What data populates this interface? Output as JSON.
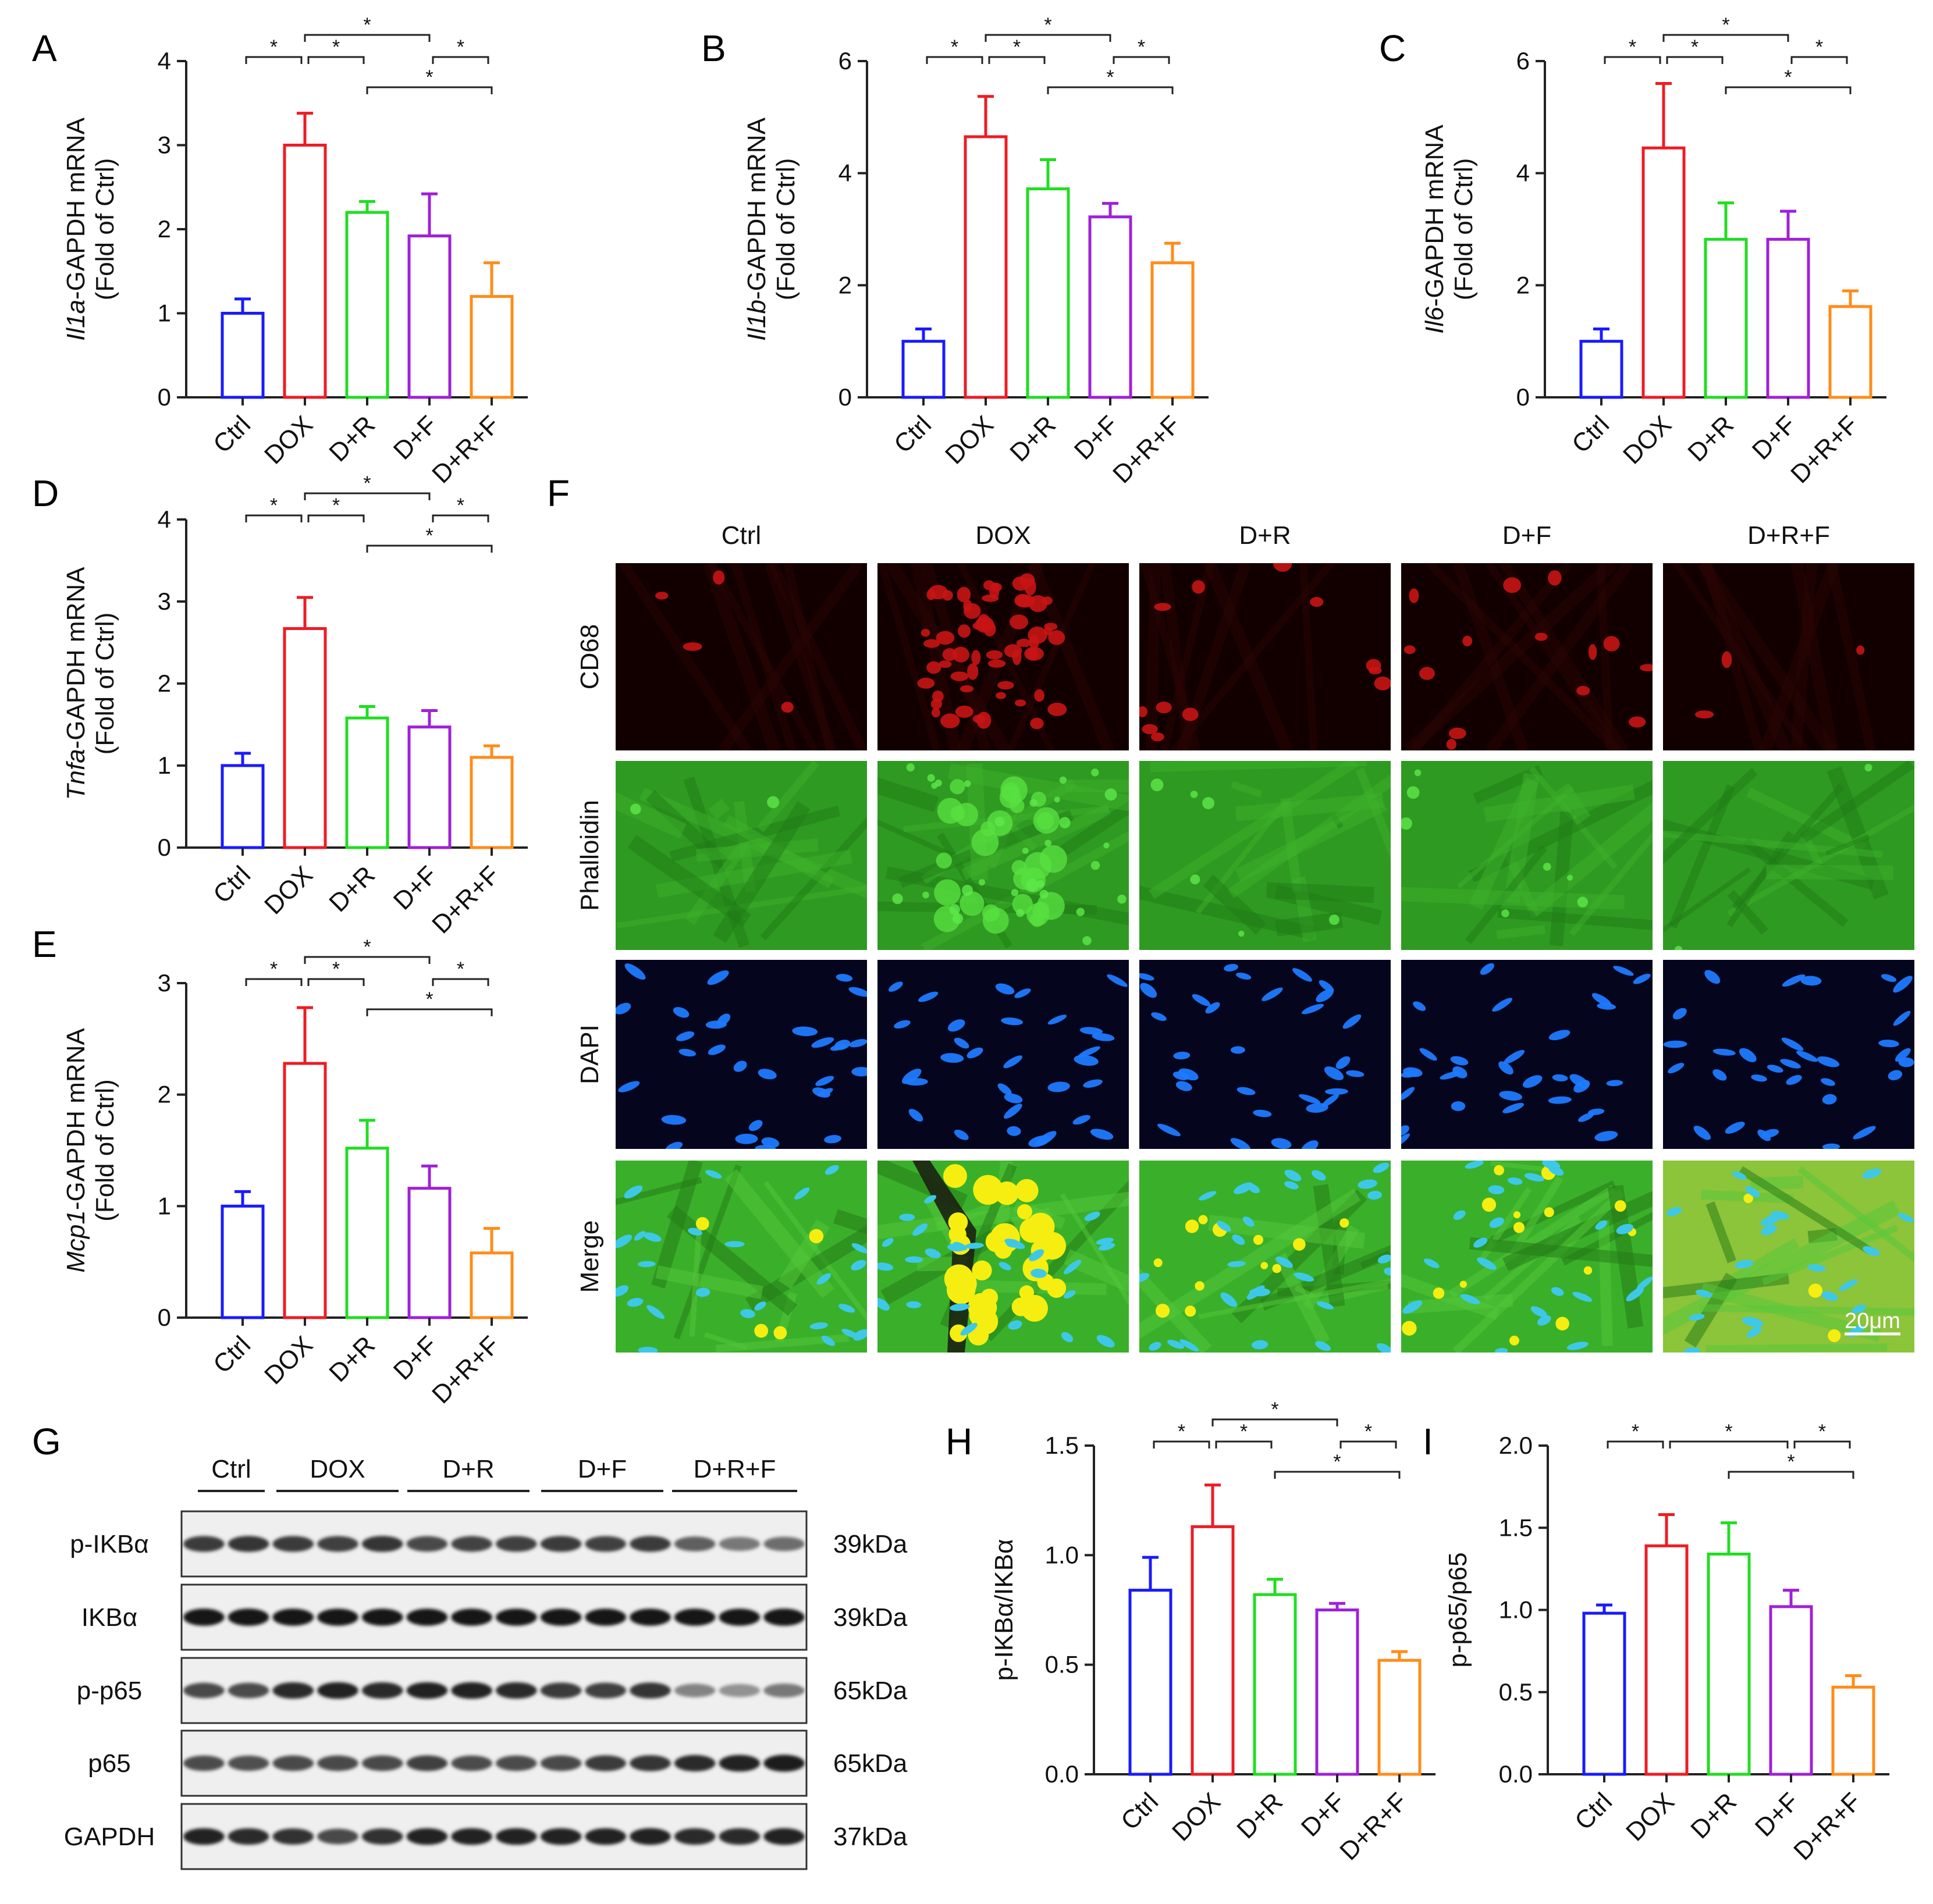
{
  "colors": {
    "Ctrl": "#1a1aff",
    "DOX": "#ee1c24",
    "D+R": "#22dd22",
    "D+F": "#a020d8",
    "D+R+F": "#ff8c1a",
    "axis": "#222222"
  },
  "chart_data": [
    {
      "panel": "A",
      "type": "bar",
      "ylabel_gene": "Il1a",
      "ylabel_rest": "-GAPDH mRNA",
      "ylabel_line2": "(Fold of Ctrl)",
      "categories": [
        "Ctrl",
        "DOX",
        "D+R",
        "D+F",
        "D+R+F"
      ],
      "values": [
        1.0,
        3.0,
        2.2,
        1.92,
        1.2
      ],
      "errors": [
        0.17,
        0.38,
        0.13,
        0.5,
        0.4
      ],
      "ylim": [
        0,
        4
      ],
      "yticks": [
        "0",
        "1",
        "2",
        "3",
        "4"
      ],
      "ytick_values": [
        0,
        1,
        2,
        3,
        4
      ],
      "significance": [
        {
          "from": 0,
          "to": 1,
          "level": 0,
          "label": "*"
        },
        {
          "from": 1,
          "to": 2,
          "level": 0,
          "label": "*"
        },
        {
          "from": 3,
          "to": 4,
          "level": 0,
          "label": "*"
        },
        {
          "from": 1,
          "to": 3,
          "level": 1,
          "label": "*"
        },
        {
          "from": 2,
          "to": 4,
          "level": -1,
          "label": "*"
        }
      ]
    },
    {
      "panel": "B",
      "type": "bar",
      "ylabel_gene": "Il1b",
      "ylabel_rest": "-GAPDH mRNA",
      "ylabel_line2": "(Fold of Ctrl)",
      "categories": [
        "Ctrl",
        "DOX",
        "D+R",
        "D+F",
        "D+R+F"
      ],
      "values": [
        1.0,
        4.65,
        3.72,
        3.22,
        2.4
      ],
      "errors": [
        0.22,
        0.72,
        0.52,
        0.24,
        0.35
      ],
      "ylim": [
        0,
        6
      ],
      "yticks": [
        "0",
        "2",
        "4",
        "6"
      ],
      "ytick_values": [
        0,
        2,
        4,
        6
      ],
      "significance": [
        {
          "from": 0,
          "to": 1,
          "level": 0,
          "label": "*"
        },
        {
          "from": 1,
          "to": 2,
          "level": 0,
          "label": "*"
        },
        {
          "from": 3,
          "to": 4,
          "level": 0,
          "label": "*"
        },
        {
          "from": 1,
          "to": 3,
          "level": 1,
          "label": "*"
        },
        {
          "from": 2,
          "to": 4,
          "level": -1,
          "label": "*"
        }
      ]
    },
    {
      "panel": "C",
      "type": "bar",
      "ylabel_gene": "Il6",
      "ylabel_rest": "-GAPDH mRNA",
      "ylabel_line2": "(Fold of Ctrl)",
      "categories": [
        "Ctrl",
        "DOX",
        "D+R",
        "D+F",
        "D+R+F"
      ],
      "values": [
        1.0,
        4.45,
        2.82,
        2.82,
        1.62
      ],
      "errors": [
        0.22,
        1.15,
        0.65,
        0.5,
        0.28
      ],
      "ylim": [
        0,
        6
      ],
      "yticks": [
        "0",
        "2",
        "4",
        "6"
      ],
      "ytick_values": [
        0,
        2,
        4,
        6
      ],
      "significance": [
        {
          "from": 0,
          "to": 1,
          "level": 0,
          "label": "*"
        },
        {
          "from": 1,
          "to": 2,
          "level": 0,
          "label": "*"
        },
        {
          "from": 3,
          "to": 4,
          "level": 0,
          "label": "*"
        },
        {
          "from": 1,
          "to": 3,
          "level": 1,
          "label": "*"
        },
        {
          "from": 2,
          "to": 4,
          "level": -1,
          "label": "*"
        }
      ]
    },
    {
      "panel": "D",
      "type": "bar",
      "ylabel_gene": "Tnfa",
      "ylabel_rest": "-GAPDH mRNA",
      "ylabel_line2": "(Fold of Ctrl)",
      "categories": [
        "Ctrl",
        "DOX",
        "D+R",
        "D+F",
        "D+R+F"
      ],
      "values": [
        1.0,
        2.67,
        1.58,
        1.47,
        1.1
      ],
      "errors": [
        0.15,
        0.38,
        0.14,
        0.2,
        0.14
      ],
      "ylim": [
        0,
        4
      ],
      "yticks": [
        "0",
        "1",
        "2",
        "3",
        "4"
      ],
      "ytick_values": [
        0,
        1,
        2,
        3,
        4
      ],
      "significance": [
        {
          "from": 0,
          "to": 1,
          "level": 0,
          "label": "*"
        },
        {
          "from": 1,
          "to": 2,
          "level": 0,
          "label": "*"
        },
        {
          "from": 3,
          "to": 4,
          "level": 0,
          "label": "*"
        },
        {
          "from": 1,
          "to": 3,
          "level": 1,
          "label": "*"
        },
        {
          "from": 2,
          "to": 4,
          "level": -1,
          "label": "*"
        }
      ]
    },
    {
      "panel": "E",
      "type": "bar",
      "ylabel_gene": "Mcp1",
      "ylabel_rest": "-GAPDH mRNA",
      "ylabel_line2": "(Fold of Ctrl)",
      "categories": [
        "Ctrl",
        "DOX",
        "D+R",
        "D+F",
        "D+R+F"
      ],
      "values": [
        1.0,
        2.28,
        1.52,
        1.16,
        0.58
      ],
      "errors": [
        0.13,
        0.5,
        0.25,
        0.2,
        0.22
      ],
      "ylim": [
        0,
        3
      ],
      "yticks": [
        "0",
        "1",
        "2",
        "3"
      ],
      "ytick_values": [
        0,
        1,
        2,
        3
      ],
      "significance": [
        {
          "from": 0,
          "to": 1,
          "level": 0,
          "label": "*"
        },
        {
          "from": 1,
          "to": 2,
          "level": 0,
          "label": "*"
        },
        {
          "from": 3,
          "to": 4,
          "level": 0,
          "label": "*"
        },
        {
          "from": 1,
          "to": 3,
          "level": 1,
          "label": "*"
        },
        {
          "from": 2,
          "to": 4,
          "level": -1,
          "label": "*"
        }
      ]
    },
    {
      "panel": "H",
      "type": "bar",
      "ylabel_gene": "",
      "ylabel_rest": "p-IKBα/IKBα",
      "ylabel_line2": "",
      "categories": [
        "Ctrl",
        "DOX",
        "D+R",
        "D+F",
        "D+R+F"
      ],
      "values": [
        0.84,
        1.13,
        0.82,
        0.75,
        0.52
      ],
      "errors": [
        0.15,
        0.19,
        0.07,
        0.03,
        0.04
      ],
      "ylim": [
        0,
        1.5
      ],
      "yticks": [
        "0.0",
        "0.5",
        "1.0",
        "1.5"
      ],
      "ytick_values": [
        0,
        0.5,
        1.0,
        1.5
      ],
      "significance": [
        {
          "from": 0,
          "to": 1,
          "level": 0,
          "label": "*"
        },
        {
          "from": 1,
          "to": 2,
          "level": 0,
          "label": "*"
        },
        {
          "from": 3,
          "to": 4,
          "level": 0,
          "label": "*"
        },
        {
          "from": 1,
          "to": 3,
          "level": 1,
          "label": "*"
        },
        {
          "from": 2,
          "to": 4,
          "level": -1,
          "label": "*"
        }
      ]
    },
    {
      "panel": "I",
      "type": "bar",
      "ylabel_gene": "",
      "ylabel_rest": "p-p65/p65",
      "ylabel_line2": "",
      "categories": [
        "Ctrl",
        "DOX",
        "D+R",
        "D+F",
        "D+R+F"
      ],
      "values": [
        0.98,
        1.39,
        1.34,
        1.02,
        0.53
      ],
      "errors": [
        0.05,
        0.19,
        0.19,
        0.1,
        0.07
      ],
      "ylim": [
        0,
        2.0
      ],
      "yticks": [
        "0.0",
        "0.5",
        "1.0",
        "1.5",
        "2.0"
      ],
      "ytick_values": [
        0,
        0.5,
        1.0,
        1.5,
        2.0
      ],
      "significance": [
        {
          "from": 0,
          "to": 1,
          "level": 0,
          "label": "*"
        },
        {
          "from": 3,
          "to": 4,
          "level": 0,
          "label": "*"
        },
        {
          "from": 1,
          "to": 3,
          "level": 0,
          "label": "*"
        },
        {
          "from": 2,
          "to": 4,
          "level": -1,
          "label": "*"
        }
      ]
    }
  ],
  "immuno": {
    "label": "F",
    "columns": [
      "Ctrl",
      "DOX",
      "D+R",
      "D+F",
      "D+R+F"
    ],
    "rows": [
      "CD68",
      "Phalloidin",
      "DAPI",
      "Merge"
    ],
    "scale_bar": "20μm"
  },
  "western": {
    "label": "G",
    "groups": [
      "Ctrl",
      "DOX",
      "D+R",
      "D+F",
      "D+R+F"
    ],
    "lanes_per_group": [
      2,
      3,
      3,
      3,
      3
    ],
    "proteins": [
      {
        "name": "p-IKBα",
        "size": "39kDa",
        "intensity": [
          0.78,
          0.8,
          0.78,
          0.75,
          0.8,
          0.72,
          0.74,
          0.76,
          0.78,
          0.76,
          0.78,
          0.62,
          0.5,
          0.55
        ]
      },
      {
        "name": "IKBα",
        "size": "39kDa",
        "intensity": [
          0.95,
          0.95,
          0.93,
          0.93,
          0.93,
          0.93,
          0.93,
          0.93,
          0.93,
          0.93,
          0.93,
          0.93,
          0.93,
          0.95
        ]
      },
      {
        "name": "p-p65",
        "size": "65kDa",
        "intensity": [
          0.72,
          0.7,
          0.86,
          0.88,
          0.86,
          0.88,
          0.88,
          0.86,
          0.78,
          0.76,
          0.8,
          0.45,
          0.38,
          0.5
        ]
      },
      {
        "name": "p65",
        "size": "65kDa",
        "intensity": [
          0.7,
          0.68,
          0.72,
          0.72,
          0.72,
          0.75,
          0.7,
          0.7,
          0.72,
          0.78,
          0.8,
          0.85,
          0.88,
          0.92
        ]
      },
      {
        "name": "GAPDH",
        "size": "37kDa",
        "intensity": [
          0.88,
          0.86,
          0.82,
          0.72,
          0.82,
          0.88,
          0.88,
          0.88,
          0.88,
          0.88,
          0.9,
          0.86,
          0.86,
          0.9
        ]
      }
    ]
  }
}
